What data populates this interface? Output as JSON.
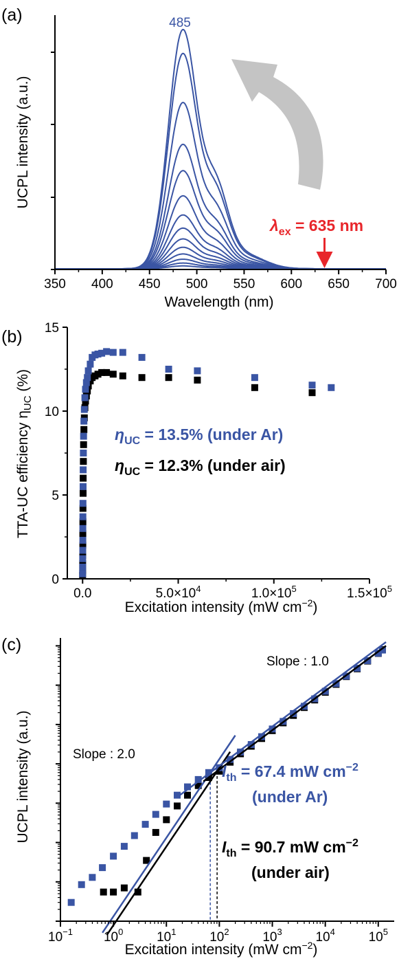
{
  "colors": {
    "blue": "#3a55a4",
    "black": "#000000",
    "red": "#e8262b",
    "arrow": "#c4c4c4"
  },
  "chart_data": [
    {
      "panel": "(a)",
      "type": "line",
      "xlabel": "Wavelength (nm)",
      "ylabel": "UCPL intensity (a.u.)",
      "xlim": [
        350,
        700
      ],
      "xticks": [
        350,
        400,
        450,
        500,
        550,
        600,
        650,
        700
      ],
      "xtick_labels": [
        "350",
        "400",
        "450",
        "500",
        "550",
        "600",
        "650",
        "700"
      ],
      "peak_label": "485",
      "excitation": {
        "symbol": "λ",
        "sub": "ex",
        "text": " = 635 nm",
        "x": 635
      },
      "series_relative_peaks": [
        1.0,
        0.9,
        0.695,
        0.52,
        0.41,
        0.305,
        0.225,
        0.17,
        0.125,
        0.09,
        0.062,
        0.04,
        0.024,
        0.012
      ]
    },
    {
      "panel": "(b)",
      "type": "scatter",
      "xlabel": "Excitation intensity (mW cm",
      "xlabel_sup": "−2",
      "xlabel_end": ")",
      "ylabel": "TTA-UC efficiency η",
      "ylabel_sub": "UC",
      "ylabel_end": " (%)",
      "xlim": [
        -8000,
        150000
      ],
      "ylim": [
        0,
        15
      ],
      "xticks": [
        0,
        50000,
        100000,
        150000
      ],
      "xtick_labels": [
        "0.0",
        "5.0×10",
        "1.0×10",
        "1.5×10"
      ],
      "xtick_sups": [
        "",
        "4",
        "5",
        "5"
      ],
      "yticks": [
        0,
        5,
        10,
        15
      ],
      "ytick_labels": [
        "0",
        "5",
        "10",
        "15"
      ],
      "annotation_ar": {
        "eta": "η",
        "sub": "UC",
        "text": " = 13.5% (under Ar)"
      },
      "annotation_air": {
        "eta": "η",
        "sub": "UC",
        "text": " = 12.3% (under air)"
      },
      "series": [
        {
          "condition": "Ar",
          "x": [
            20,
            40,
            60,
            80,
            100,
            130,
            160,
            200,
            250,
            300,
            400,
            500,
            700,
            900,
            1200,
            1500,
            2000,
            2500,
            3000,
            4000,
            5000,
            6500,
            8000,
            10000,
            12500,
            16000,
            21000,
            31000,
            45000,
            60000,
            90000,
            120000,
            130000
          ],
          "y": [
            0.3,
            0.7,
            1.2,
            1.7,
            2.3,
            3.0,
            3.7,
            4.5,
            5.5,
            6.5,
            7.5,
            8.5,
            9.4,
            10.1,
            10.8,
            11.3,
            11.7,
            12.0,
            12.4,
            12.8,
            13.2,
            13.35,
            13.4,
            13.45,
            13.55,
            13.5,
            13.5,
            13.2,
            12.5,
            12.4,
            12.0,
            11.55,
            11.4
          ]
        },
        {
          "condition": "air",
          "x": [
            20,
            40,
            60,
            80,
            100,
            130,
            160,
            200,
            250,
            300,
            400,
            500,
            700,
            900,
            1200,
            1500,
            2000,
            2500,
            3000,
            4000,
            5000,
            6500,
            8000,
            10000,
            12500,
            16000,
            21000,
            31000,
            45000,
            60000,
            90000,
            120000
          ],
          "y": [
            0.2,
            0.5,
            0.9,
            1.4,
            2.0,
            2.7,
            3.4,
            4.2,
            5.1,
            6.0,
            7.0,
            8.0,
            8.9,
            9.6,
            10.2,
            10.6,
            10.9,
            11.2,
            11.5,
            11.8,
            12.0,
            12.1,
            12.2,
            12.3,
            12.3,
            12.2,
            12.1,
            12.0,
            12.0,
            11.85,
            11.4,
            11.1
          ]
        }
      ]
    },
    {
      "panel": "(c)",
      "type": "scatter",
      "scale": "log-log",
      "xlabel": "Excitation intensity (mW cm",
      "xlabel_sup": "−2",
      "xlabel_end": ")",
      "ylabel": "UCPL intensity (a.u.)",
      "xlim": [
        0.1,
        200000
      ],
      "xticks": [
        0.1,
        1,
        10,
        100,
        1000,
        10000,
        100000
      ],
      "xtick_bases": [
        "10",
        "10",
        "10",
        "10",
        "10",
        "10",
        "10"
      ],
      "xtick_sups": [
        "−1",
        "0",
        "1",
        "2",
        "3",
        "4",
        "5"
      ],
      "slope_low_label": "Slope : 2.0",
      "slope_high_label": "Slope : 1.0",
      "ith_ar": {
        "I": "I",
        "sub": "th",
        "text": " = 67.4 mW cm",
        "sup": "−2",
        "line2": "(under Ar)",
        "x": 67.4
      },
      "ith_air": {
        "I": "I",
        "sub": "th",
        "text": " = 90.7 mW cm",
        "sup": "−2",
        "line2": "(under air)",
        "x": 90.7
      },
      "series": [
        {
          "condition": "Ar",
          "x": [
            0.16,
            0.25,
            0.4,
            0.62,
            1.0,
            1.6,
            2.5,
            4.0,
            6.3,
            10,
            16,
            25,
            40,
            63,
            100,
            160,
            250,
            400,
            630,
            1000,
            1600,
            2500,
            4000,
            6300,
            10000,
            16000,
            25000,
            40000,
            63000,
            100000,
            120000
          ],
          "y": [
            0.0003,
            0.00085,
            0.0013,
            0.0023,
            0.0045,
            0.008,
            0.015,
            0.029,
            0.052,
            0.095,
            0.16,
            0.26,
            0.4,
            0.6,
            0.8,
            1.3,
            2.0,
            3.1,
            4.9,
            7.7,
            12,
            19,
            29,
            45,
            70,
            110,
            170,
            270,
            420,
            650,
            780
          ]
        },
        {
          "condition": "air",
          "x": [
            0.65,
            1.0,
            1.6,
            2.9,
            4.2,
            6.3,
            10,
            16,
            25,
            40,
            63,
            100,
            160,
            250,
            400,
            630,
            1000,
            1600,
            2500,
            4000,
            6300,
            10000,
            16000,
            25000,
            40000,
            63000,
            100000,
            120000
          ],
          "y": [
            0.00055,
            0.00055,
            0.0007,
            0.00055,
            0.0035,
            0.018,
            0.038,
            0.085,
            0.16,
            0.28,
            0.45,
            0.65,
            1.1,
            1.8,
            2.8,
            4.4,
            7.0,
            11,
            17,
            27,
            42,
            66,
            105,
            165,
            260,
            410,
            640,
            800
          ]
        }
      ]
    }
  ]
}
